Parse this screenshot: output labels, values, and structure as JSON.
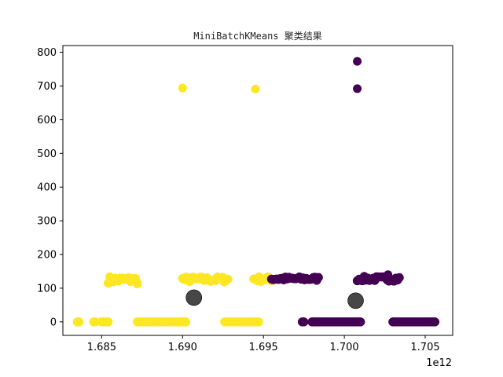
{
  "chart_data": {
    "type": "scatter",
    "title": "MiniBatchKMeans 聚类结果",
    "xlabel": "",
    "ylabel": "",
    "x_offset_label": "1e12",
    "xlim": [
      1.6826,
      1.7067
    ],
    "ylim": [
      -40,
      820
    ],
    "x_ticks": [
      1.685,
      1.69,
      1.695,
      1.7,
      1.705
    ],
    "x_tick_labels": [
      "1.685",
      "1.690",
      "1.695",
      "1.700",
      "1.705"
    ],
    "y_ticks": [
      0,
      100,
      200,
      300,
      400,
      500,
      600,
      700,
      800
    ],
    "y_tick_labels": [
      "0",
      "100",
      "200",
      "300",
      "400",
      "500",
      "600",
      "700",
      "800"
    ],
    "grid": false,
    "colors": {
      "cluster_yellow": "#fde725",
      "cluster_purple": "#440154",
      "centroid": "#333333"
    },
    "clusters": [
      {
        "color": "#fde725",
        "segments": [
          {
            "x_start": 1.6835,
            "x_end": 1.6836,
            "y": 0
          },
          {
            "x_start": 1.6845,
            "x_end": 1.6846,
            "y": 0
          },
          {
            "x_start": 1.685,
            "x_end": 1.6854,
            "y": 0
          },
          {
            "x_start": 1.6872,
            "x_end": 1.6902,
            "y": 0
          },
          {
            "x_start": 1.6926,
            "x_end": 1.6947,
            "y": 0
          },
          {
            "x_start": 1.6854,
            "x_end": 1.6872,
            "y": 125,
            "spread": 10
          },
          {
            "x_start": 1.69,
            "x_end": 1.6928,
            "y": 126,
            "spread": 8
          },
          {
            "x_start": 1.6944,
            "x_end": 1.6955,
            "y": 127,
            "spread": 8
          }
        ],
        "points": [
          {
            "x": 1.69,
            "y": 694
          },
          {
            "x": 1.6945,
            "y": 691
          },
          {
            "x": 1.6872,
            "y": 112
          }
        ]
      },
      {
        "color": "#440154",
        "segments": [
          {
            "x_start": 1.6974,
            "x_end": 1.6975,
            "y": 0
          },
          {
            "x_start": 1.698,
            "x_end": 1.701,
            "y": 0
          },
          {
            "x_start": 1.703,
            "x_end": 1.7056,
            "y": 0
          },
          {
            "x_start": 1.6955,
            "x_end": 1.6984,
            "y": 128,
            "spread": 6
          },
          {
            "x_start": 1.7008,
            "x_end": 1.7034,
            "y": 128,
            "spread": 7
          }
        ],
        "points": [
          {
            "x": 1.7008,
            "y": 773
          },
          {
            "x": 1.7008,
            "y": 692
          },
          {
            "x": 1.7027,
            "y": 140
          }
        ]
      }
    ],
    "centroids": [
      {
        "x": 1.6907,
        "y": 72
      },
      {
        "x": 1.7007,
        "y": 63
      }
    ]
  }
}
